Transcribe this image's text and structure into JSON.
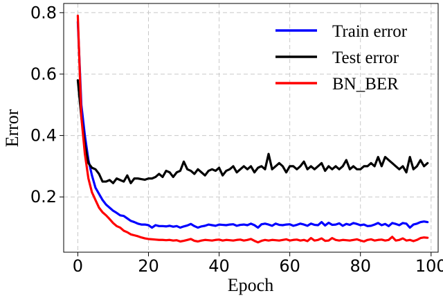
{
  "chart_data": {
    "type": "line",
    "title": "",
    "xlabel": "Epoch",
    "ylabel": "Error",
    "xlim": [
      -4,
      102
    ],
    "ylim": [
      0.02,
      0.83
    ],
    "xticks": [
      0,
      20,
      40,
      60,
      80,
      100
    ],
    "yticks": [
      0.2,
      0.4,
      0.6,
      0.8
    ],
    "xtick_labels": [
      "0",
      "20",
      "40",
      "60",
      "80",
      "100"
    ],
    "ytick_labels": [
      "0.2",
      "0.4",
      "0.6",
      "0.8"
    ],
    "grid": true,
    "legend_position": "top-right",
    "x": [
      0,
      1,
      2,
      3,
      4,
      5,
      6,
      7,
      8,
      9,
      10,
      11,
      12,
      13,
      14,
      15,
      16,
      17,
      18,
      19,
      20,
      21,
      22,
      23,
      24,
      25,
      26,
      27,
      28,
      29,
      30,
      31,
      32,
      33,
      34,
      35,
      36,
      37,
      38,
      39,
      40,
      41,
      42,
      43,
      44,
      45,
      46,
      47,
      48,
      49,
      50,
      51,
      52,
      53,
      54,
      55,
      56,
      57,
      58,
      59,
      60,
      61,
      62,
      63,
      64,
      65,
      66,
      67,
      68,
      69,
      70,
      71,
      72,
      73,
      74,
      75,
      76,
      77,
      78,
      79,
      80,
      81,
      82,
      83,
      84,
      85,
      86,
      87,
      88,
      89,
      90,
      91,
      92,
      93,
      94,
      95,
      96,
      97,
      98,
      99
    ],
    "series": [
      {
        "name": "Train error",
        "color": "#0000ff",
        "values": [
          0.77,
          0.5,
          0.4,
          0.32,
          0.27,
          0.23,
          0.21,
          0.19,
          0.175,
          0.165,
          0.155,
          0.148,
          0.14,
          0.138,
          0.13,
          0.122,
          0.118,
          0.113,
          0.11,
          0.11,
          0.108,
          0.1,
          0.108,
          0.105,
          0.105,
          0.104,
          0.106,
          0.103,
          0.105,
          0.1,
          0.104,
          0.107,
          0.112,
          0.105,
          0.1,
          0.104,
          0.106,
          0.11,
          0.108,
          0.106,
          0.11,
          0.109,
          0.108,
          0.11,
          0.111,
          0.106,
          0.109,
          0.11,
          0.108,
          0.113,
          0.108,
          0.1,
          0.111,
          0.113,
          0.11,
          0.106,
          0.113,
          0.109,
          0.108,
          0.11,
          0.111,
          0.106,
          0.109,
          0.113,
          0.11,
          0.106,
          0.113,
          0.109,
          0.108,
          0.118,
          0.107,
          0.116,
          0.109,
          0.11,
          0.114,
          0.106,
          0.112,
          0.109,
          0.115,
          0.112,
          0.108,
          0.11,
          0.105,
          0.106,
          0.11,
          0.115,
          0.108,
          0.112,
          0.105,
          0.115,
          0.112,
          0.108,
          0.115,
          0.113,
          0.1,
          0.11,
          0.113,
          0.118,
          0.12,
          0.118
        ]
      },
      {
        "name": "Test error",
        "color": "#000000",
        "values": [
          0.58,
          0.46,
          0.37,
          0.31,
          0.295,
          0.29,
          0.275,
          0.25,
          0.25,
          0.255,
          0.245,
          0.26,
          0.255,
          0.25,
          0.27,
          0.245,
          0.26,
          0.26,
          0.258,
          0.256,
          0.26,
          0.26,
          0.265,
          0.275,
          0.265,
          0.285,
          0.28,
          0.265,
          0.28,
          0.285,
          0.315,
          0.29,
          0.285,
          0.275,
          0.29,
          0.28,
          0.27,
          0.285,
          0.29,
          0.285,
          0.295,
          0.27,
          0.285,
          0.29,
          0.3,
          0.28,
          0.29,
          0.3,
          0.29,
          0.3,
          0.28,
          0.295,
          0.3,
          0.29,
          0.34,
          0.29,
          0.3,
          0.31,
          0.3,
          0.28,
          0.3,
          0.3,
          0.29,
          0.3,
          0.315,
          0.29,
          0.3,
          0.29,
          0.3,
          0.31,
          0.285,
          0.3,
          0.29,
          0.3,
          0.29,
          0.3,
          0.32,
          0.29,
          0.3,
          0.29,
          0.29,
          0.3,
          0.3,
          0.31,
          0.3,
          0.33,
          0.3,
          0.33,
          0.32,
          0.31,
          0.3,
          0.29,
          0.3,
          0.28,
          0.33,
          0.29,
          0.3,
          0.32,
          0.3,
          0.31
        ]
      },
      {
        "name": "BN_BER",
        "color": "#ff0000",
        "values": [
          0.79,
          0.46,
          0.34,
          0.26,
          0.215,
          0.19,
          0.165,
          0.15,
          0.14,
          0.128,
          0.115,
          0.105,
          0.1,
          0.09,
          0.085,
          0.078,
          0.075,
          0.072,
          0.068,
          0.065,
          0.063,
          0.062,
          0.061,
          0.06,
          0.06,
          0.059,
          0.06,
          0.058,
          0.059,
          0.055,
          0.057,
          0.06,
          0.063,
          0.057,
          0.055,
          0.058,
          0.06,
          0.059,
          0.058,
          0.06,
          0.061,
          0.058,
          0.06,
          0.059,
          0.058,
          0.06,
          0.061,
          0.058,
          0.06,
          0.063,
          0.057,
          0.052,
          0.057,
          0.06,
          0.058,
          0.06,
          0.059,
          0.058,
          0.06,
          0.062,
          0.058,
          0.06,
          0.061,
          0.058,
          0.06,
          0.056,
          0.066,
          0.058,
          0.06,
          0.065,
          0.057,
          0.058,
          0.066,
          0.06,
          0.058,
          0.06,
          0.059,
          0.058,
          0.06,
          0.062,
          0.058,
          0.055,
          0.06,
          0.062,
          0.058,
          0.06,
          0.061,
          0.058,
          0.06,
          0.07,
          0.058,
          0.06,
          0.065,
          0.058,
          0.06,
          0.056,
          0.06,
          0.066,
          0.068,
          0.067
        ]
      }
    ]
  }
}
